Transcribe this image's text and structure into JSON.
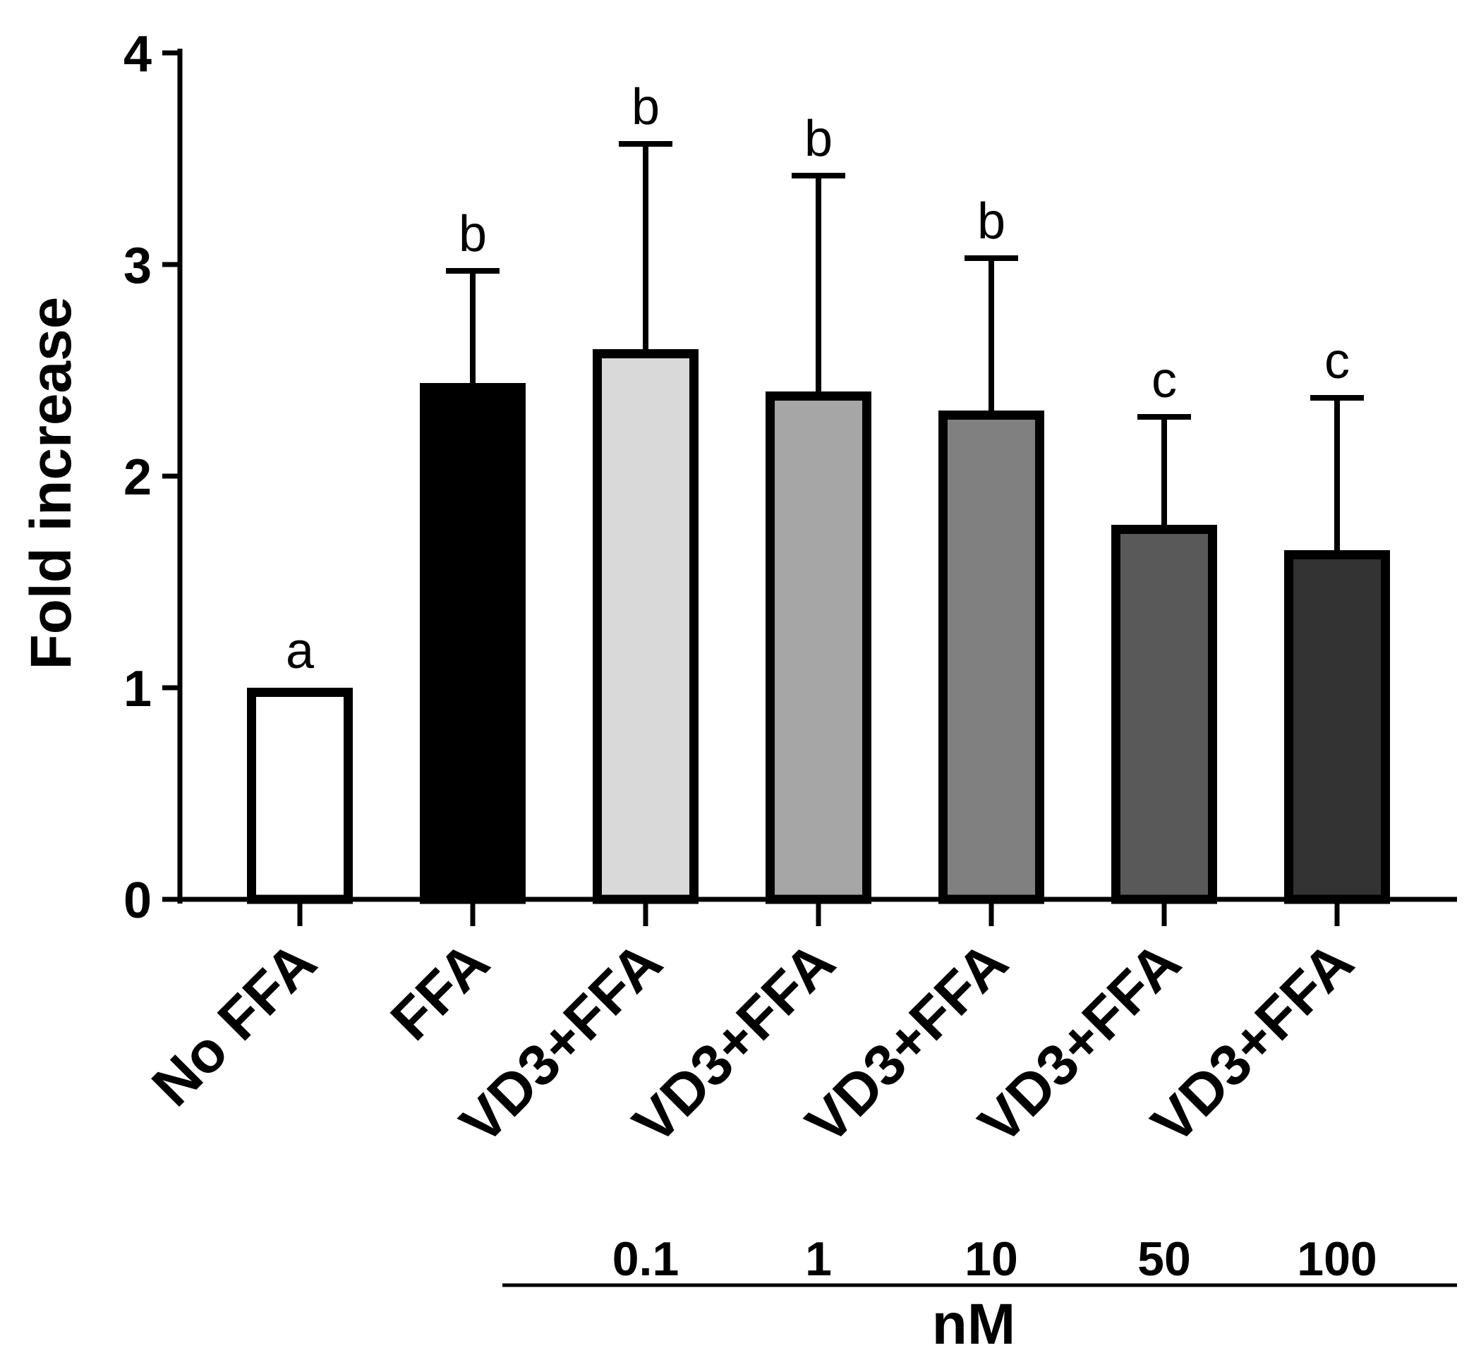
{
  "chart_data": {
    "type": "bar",
    "title": "",
    "xlabel": "",
    "ylabel": "Fold increase",
    "ylim": [
      0,
      4
    ],
    "yticks": [
      0,
      1,
      2,
      3,
      4
    ],
    "categories": [
      "No FFA",
      "FFA",
      "VD3+FFA",
      "VD3+FFA",
      "VD3+FFA",
      "VD3+FFA",
      "VD3+FFA"
    ],
    "values": [
      1.0,
      2.44,
      2.6,
      2.4,
      2.31,
      1.77,
      1.65
    ],
    "error_upper": [
      0.0,
      0.53,
      0.97,
      1.02,
      0.72,
      0.51,
      0.72
    ],
    "significance": [
      "a",
      "b",
      "b",
      "b",
      "b",
      "c",
      "c"
    ],
    "bar_fills": [
      "#ffffff",
      "#000000",
      "#d9d9d9",
      "#a6a6a6",
      "#808080",
      "#595959",
      "#333333"
    ],
    "concentrations": [
      "",
      "",
      "0.1",
      "1",
      "10",
      "50",
      "100"
    ],
    "concentration_unit": "nM",
    "grid": false
  }
}
